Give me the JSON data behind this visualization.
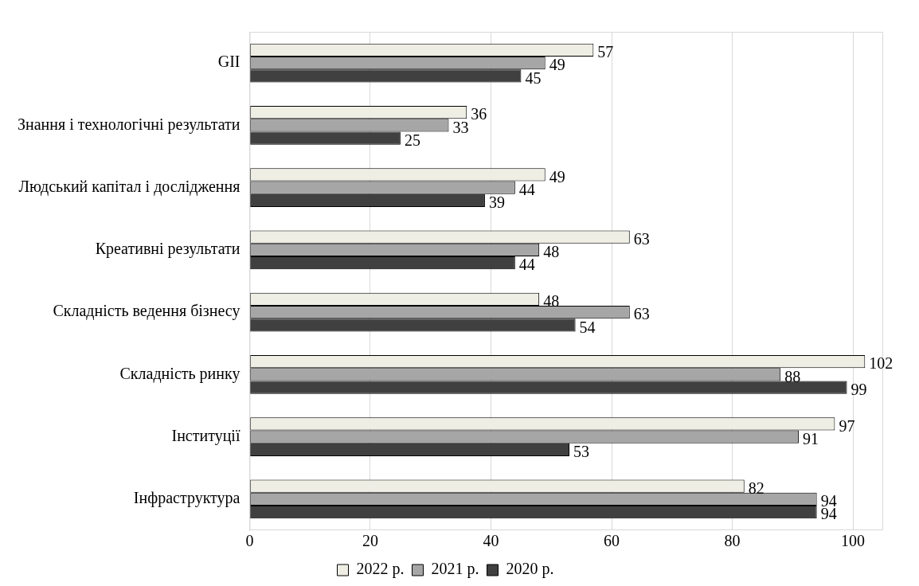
{
  "chart_data": {
    "type": "bar",
    "orientation": "horizontal",
    "categories": [
      "GII",
      "Знання і технологічні результати",
      "Людський капітал і дослідження",
      "Креативні результати",
      "Складність ведення бізнесу",
      "Складність ринку",
      "Інституції",
      "Інфраструктура"
    ],
    "series": [
      {
        "name": "2022 р.",
        "color": "#efeee4",
        "values": [
          57,
          36,
          49,
          63,
          48,
          102,
          97,
          82
        ]
      },
      {
        "name": "2021 р.",
        "color": "#a6a6a6",
        "values": [
          49,
          33,
          44,
          48,
          63,
          88,
          91,
          94
        ]
      },
      {
        "name": "2020 р.",
        "color": "#404040",
        "values": [
          45,
          25,
          39,
          44,
          54,
          99,
          53,
          94
        ]
      }
    ],
    "xlim": [
      0,
      105
    ],
    "xticks": [
      0,
      20,
      40,
      60,
      80,
      100
    ],
    "grid": "x",
    "legend": "bottom",
    "data_labels": true
  }
}
